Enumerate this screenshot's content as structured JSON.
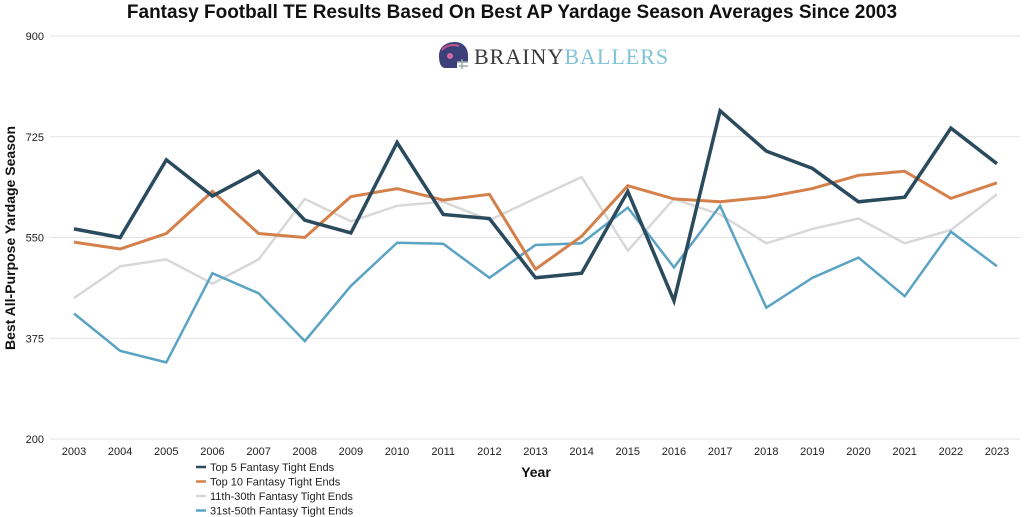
{
  "logo": {
    "part1": "BRAINY",
    "part2": "BALLERS",
    "color1": "#3a3a3a",
    "color2": "#7fc3d4",
    "icon": "football-helmet-icon"
  },
  "chart_data": {
    "type": "line",
    "title": "Fantasy Football TE Results Based On Best AP Yardage Season Averages Since 2003",
    "xlabel": "Year",
    "ylabel": "Best All-Purpose Yardage Season",
    "ylim": [
      200,
      900
    ],
    "yticks": [
      200,
      375,
      550,
      725,
      900
    ],
    "grid": true,
    "legend_position": "bottom-left",
    "x": [
      "2003",
      "2004",
      "2005",
      "2006",
      "2007",
      "2008",
      "2009",
      "2010",
      "2011",
      "2012",
      "2013",
      "2014",
      "2015",
      "2016",
      "2017",
      "2018",
      "2019",
      "2020",
      "2021",
      "2022",
      "2023"
    ],
    "series": [
      {
        "name": "Top 5 Fantasy Tight Ends",
        "color": "#2a4a5e",
        "width": 3.5,
        "values": [
          565,
          550,
          685,
          622,
          665,
          580,
          558,
          715,
          590,
          583,
          480,
          488,
          630,
          440,
          770,
          700,
          670,
          612,
          620,
          740,
          678
        ]
      },
      {
        "name": "Top 10 Fantasy Tight Ends",
        "color": "#d4804a",
        "width": 3,
        "values": [
          542,
          530,
          557,
          630,
          557,
          550,
          621,
          635,
          615,
          625,
          495,
          552,
          640,
          617,
          612,
          620,
          635,
          658,
          665,
          618,
          645
        ]
      },
      {
        "name": "11th-30th Fantasy Tight Ends",
        "color": "#d8d8d8",
        "width": 2.5,
        "values": [
          445,
          500,
          512,
          470,
          512,
          617,
          578,
          605,
          612,
          580,
          618,
          655,
          527,
          617,
          590,
          540,
          565,
          583,
          540,
          563,
          625
        ]
      },
      {
        "name": "31st-50th Fantasy Tight Ends",
        "color": "#5ba3c4",
        "width": 2.5,
        "values": [
          418,
          353,
          333,
          488,
          453,
          370,
          466,
          541,
          539,
          480,
          537,
          540,
          602,
          498,
          605,
          428,
          480,
          515,
          448,
          560,
          500
        ]
      }
    ]
  }
}
